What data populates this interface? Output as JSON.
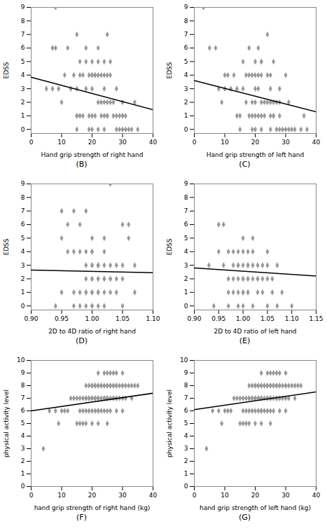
{
  "chart_data": [
    {
      "type": "scatter",
      "title": "(B)",
      "xlabel": "Hand grip strength of right hand",
      "ylabel": "EDSS",
      "xlim": [
        0,
        40
      ],
      "ylim": [
        -0.3,
        9
      ],
      "xticks": [
        0,
        10,
        20,
        30,
        40
      ],
      "yticks": [
        0,
        1,
        2,
        3,
        4,
        5,
        6,
        7,
        8,
        9
      ],
      "series": [
        {
          "type": "scatter",
          "color": "#999999",
          "marker": "diamond",
          "x": [
            5,
            7,
            7,
            8,
            8,
            9,
            10,
            11,
            12,
            13,
            14,
            15,
            15,
            15,
            15,
            15,
            16,
            16,
            16,
            17,
            17,
            18,
            18,
            18,
            19,
            19,
            19,
            20,
            20,
            20,
            20,
            20,
            20,
            21,
            21,
            21,
            22,
            22,
            22,
            22,
            22,
            23,
            23,
            23,
            24,
            24,
            24,
            24,
            24,
            24,
            25,
            25,
            25,
            25,
            25,
            26,
            26,
            26,
            27,
            27,
            28,
            28,
            28,
            29,
            29,
            30,
            30,
            30,
            30,
            31,
            31,
            32,
            33,
            34,
            35
          ],
          "values": [
            3,
            6,
            3,
            9,
            6,
            3,
            2,
            4,
            6,
            3,
            4,
            3,
            1,
            1,
            0,
            7,
            5,
            4,
            1,
            4,
            1,
            6,
            5,
            3,
            4,
            1,
            0,
            4,
            3,
            5,
            4,
            1,
            0,
            4,
            4,
            1,
            6,
            5,
            4,
            2,
            0,
            4,
            2,
            1,
            5,
            4,
            3,
            2,
            1,
            0,
            4,
            2,
            1,
            1,
            7,
            4,
            2,
            5,
            2,
            1,
            3,
            1,
            0,
            0,
            1,
            2,
            1,
            0,
            1,
            1,
            0,
            0,
            0,
            2,
            0
          ]
        },
        {
          "type": "line",
          "color": "#000000",
          "x": [
            0,
            40
          ],
          "values": [
            3.85,
            1.45
          ]
        }
      ]
    },
    {
      "type": "scatter",
      "title": "(C)",
      "xlabel": "Hand grip strength of left hand",
      "ylabel": "EDSS",
      "xlim": [
        0,
        40
      ],
      "ylim": [
        -0.3,
        9
      ],
      "xticks": [
        0,
        10,
        20,
        30,
        40
      ],
      "yticks": [
        0,
        1,
        2,
        3,
        4,
        5,
        6,
        7,
        8,
        9
      ],
      "series": [
        {
          "type": "scatter",
          "color": "#999999",
          "marker": "diamond",
          "x": [
            3,
            5,
            7,
            8,
            9,
            10,
            10,
            11,
            12,
            13,
            14,
            14,
            15,
            15,
            16,
            16,
            17,
            17,
            18,
            18,
            18,
            19,
            19,
            19,
            19,
            20,
            20,
            20,
            20,
            20,
            20,
            21,
            21,
            21,
            21,
            22,
            22,
            22,
            22,
            22,
            22,
            23,
            23,
            24,
            24,
            24,
            25,
            25,
            25,
            25,
            25,
            26,
            26,
            26,
            26,
            27,
            27,
            28,
            28,
            28,
            28,
            29,
            30,
            30,
            31,
            31,
            32,
            33,
            35,
            36,
            37
          ],
          "values": [
            9,
            6,
            6,
            3,
            2,
            4,
            3,
            4,
            3,
            4,
            1,
            3,
            1,
            0,
            5,
            3,
            4,
            2,
            6,
            4,
            1,
            4,
            2,
            1,
            0,
            5,
            4,
            3,
            2,
            1,
            0,
            4,
            3,
            6,
            1,
            5,
            5,
            4,
            2,
            1,
            0,
            2,
            1,
            4,
            2,
            7,
            4,
            3,
            2,
            1,
            0,
            2,
            1,
            5,
            1,
            2,
            0,
            1,
            2,
            0,
            3,
            0,
            4,
            0,
            2,
            0,
            0,
            0,
            0,
            1,
            0
          ]
        },
        {
          "type": "line",
          "color": "#000000",
          "x": [
            0,
            40
          ],
          "values": [
            3.6,
            1.3
          ]
        }
      ]
    },
    {
      "type": "scatter",
      "title": "(D)",
      "xlabel": "2D to 4D ratio of right hand",
      "ylabel": "EDSS",
      "xlim": [
        0.9,
        1.1
      ],
      "ylim": [
        -0.3,
        9
      ],
      "xticks": [
        {
          "value": 0.9,
          "label": "0.90"
        },
        0.95,
        {
          "value": 1.0,
          "label": "1.00"
        },
        1.05,
        {
          "value": 1.1,
          "label": "1.10"
        }
      ],
      "yticks": [
        0,
        1,
        2,
        3,
        4,
        5,
        6,
        7,
        8,
        9
      ],
      "series": [
        {
          "type": "scatter",
          "color": "#999999",
          "marker": "diamond",
          "x": [
            0.94,
            0.95,
            0.95,
            0.95,
            0.96,
            0.96,
            0.97,
            0.97,
            0.97,
            0.97,
            0.98,
            0.98,
            0.98,
            0.98,
            0.99,
            0.99,
            0.99,
            0.99,
            0.99,
            0.99,
            0.99,
            1.0,
            1.0,
            1.0,
            1.0,
            1.0,
            1.0,
            1.0,
            1.0,
            1.0,
            1.0,
            1.0,
            1.0,
            1.01,
            1.01,
            1.01,
            1.01,
            1.01,
            1.01,
            1.01,
            1.01,
            1.02,
            1.02,
            1.02,
            1.02,
            1.02,
            1.02,
            1.02,
            1.03,
            1.03,
            1.03,
            1.03,
            1.03,
            1.04,
            1.04,
            1.04,
            1.05,
            1.05,
            1.05,
            1.05,
            1.06,
            1.06,
            1.07,
            1.07
          ],
          "values": [
            0,
            1,
            5,
            7,
            4,
            6,
            7,
            4,
            1,
            0,
            6,
            4,
            1,
            0,
            4,
            3,
            2,
            1,
            1,
            0,
            7,
            4,
            3,
            3,
            2,
            2,
            1,
            1,
            0,
            0,
            4,
            4,
            5,
            3,
            3,
            3,
            2,
            2,
            1,
            1,
            0,
            5,
            4,
            3,
            2,
            2,
            1,
            0,
            3,
            2,
            2,
            1,
            9,
            3,
            2,
            1,
            6,
            3,
            2,
            0,
            6,
            5,
            3,
            1
          ]
        },
        {
          "type": "line",
          "color": "#000000",
          "x": [
            0.9,
            1.1
          ],
          "values": [
            2.65,
            2.45
          ]
        }
      ]
    },
    {
      "type": "scatter",
      "title": "(E)",
      "xlabel": "2D to 4D ratio of left hand",
      "ylabel": "EDSS",
      "xlim": [
        0.9,
        1.15
      ],
      "ylim": [
        -0.3,
        9
      ],
      "xticks": [
        {
          "value": 0.9,
          "label": "0.90"
        },
        0.95,
        {
          "value": 1.0,
          "label": "1.00"
        },
        1.05,
        {
          "value": 1.1,
          "label": "1.10"
        },
        1.15
      ],
      "yticks": [
        0,
        1,
        2,
        3,
        4,
        5,
        6,
        7,
        8,
        9
      ],
      "series": [
        {
          "type": "scatter",
          "color": "#999999",
          "marker": "diamond",
          "x": [
            0.93,
            0.94,
            0.95,
            0.95,
            0.96,
            0.96,
            0.97,
            0.97,
            0.97,
            0.97,
            0.98,
            0.98,
            0.98,
            0.98,
            0.99,
            0.99,
            0.99,
            0.99,
            0.99,
            0.99,
            1.0,
            1.0,
            1.0,
            1.0,
            1.0,
            1.0,
            1.0,
            1.0,
            1.01,
            1.01,
            1.01,
            1.01,
            1.01,
            1.01,
            1.01,
            1.02,
            1.02,
            1.02,
            1.02,
            1.02,
            1.03,
            1.03,
            1.03,
            1.03,
            1.04,
            1.04,
            1.04,
            1.05,
            1.05,
            1.05,
            1.05,
            1.06,
            1.06,
            1.07,
            1.07,
            1.08,
            1.1
          ],
          "values": [
            3,
            0,
            4,
            6,
            3,
            6,
            4,
            2,
            1,
            0,
            4,
            3,
            2,
            1,
            4,
            3,
            3,
            2,
            1,
            0,
            5,
            4,
            3,
            2,
            2,
            1,
            1,
            0,
            4,
            3,
            3,
            2,
            2,
            1,
            1,
            5,
            4,
            3,
            2,
            0,
            3,
            2,
            2,
            1,
            3,
            2,
            1,
            4,
            3,
            2,
            0,
            2,
            1,
            3,
            0,
            1,
            0
          ]
        },
        {
          "type": "line",
          "color": "#000000",
          "x": [
            0.9,
            1.15
          ],
          "values": [
            2.8,
            2.2
          ]
        }
      ]
    },
    {
      "type": "scatter",
      "title": "(F)",
      "xlabel": "hand grip strength of right hand (kg)",
      "ylabel": "physical activity level",
      "xlim": [
        0,
        40
      ],
      "ylim": [
        0,
        10
      ],
      "xticks": [
        0,
        10,
        20,
        30,
        40
      ],
      "yticks": [
        0,
        1,
        2,
        3,
        4,
        5,
        6,
        7,
        8,
        9,
        10
      ],
      "series": [
        {
          "type": "scatter",
          "color": "#999999",
          "marker": "diamond",
          "x": [
            4,
            6,
            8,
            9,
            10,
            11,
            12,
            13,
            14,
            15,
            15,
            16,
            16,
            16,
            17,
            17,
            17,
            18,
            18,
            18,
            18,
            18,
            19,
            19,
            19,
            19,
            20,
            20,
            20,
            20,
            20,
            20,
            21,
            21,
            21,
            21,
            21,
            22,
            22,
            22,
            22,
            22,
            22,
            22,
            22,
            22,
            23,
            23,
            23,
            23,
            24,
            24,
            24,
            24,
            24,
            24,
            25,
            25,
            25,
            25,
            25,
            25,
            25,
            25,
            26,
            26,
            26,
            26,
            26,
            27,
            27,
            27,
            27,
            27,
            28,
            28,
            28,
            28,
            28,
            28,
            29,
            29,
            30,
            30,
            30,
            30,
            30,
            31,
            31,
            32,
            33,
            33,
            34,
            35
          ],
          "values": [
            3,
            6,
            6,
            5,
            6,
            6,
            6,
            7,
            7,
            7,
            5,
            7,
            6,
            5,
            7,
            6,
            5,
            8,
            7,
            7,
            6,
            5,
            8,
            7,
            7,
            6,
            8,
            8,
            7,
            7,
            6,
            5,
            8,
            8,
            7,
            7,
            6,
            9,
            8,
            8,
            7,
            7,
            7,
            6,
            6,
            5,
            8,
            8,
            7,
            6,
            9,
            8,
            8,
            7,
            7,
            6,
            9,
            8,
            8,
            7,
            7,
            7,
            6,
            5,
            9,
            8,
            8,
            7,
            6,
            9,
            8,
            8,
            7,
            7,
            9,
            8,
            8,
            7,
            7,
            6,
            8,
            7,
            9,
            8,
            8,
            7,
            6,
            8,
            7,
            8,
            8,
            7,
            8,
            8
          ]
        },
        {
          "type": "line",
          "color": "#000000",
          "x": [
            0,
            40
          ],
          "values": [
            6.0,
            7.4
          ]
        }
      ]
    },
    {
      "type": "scatter",
      "title": "(G)",
      "xlabel": "hand grip strength of left hand (kg)",
      "ylabel": "physical activity level",
      "xlim": [
        0,
        40
      ],
      "ylim": [
        0,
        10
      ],
      "xticks": [
        0,
        10,
        20,
        30,
        40
      ],
      "yticks": [
        0,
        1,
        2,
        3,
        4,
        5,
        6,
        7,
        8,
        9,
        10
      ],
      "series": [
        {
          "type": "scatter",
          "color": "#999999",
          "marker": "diamond",
          "x": [
            4,
            6,
            8,
            9,
            10,
            11,
            12,
            13,
            14,
            15,
            15,
            16,
            16,
            16,
            17,
            17,
            17,
            18,
            18,
            18,
            18,
            18,
            19,
            19,
            19,
            19,
            20,
            20,
            20,
            20,
            20,
            20,
            21,
            21,
            21,
            21,
            21,
            22,
            22,
            22,
            22,
            22,
            22,
            22,
            22,
            22,
            23,
            23,
            23,
            23,
            24,
            24,
            24,
            24,
            24,
            24,
            25,
            25,
            25,
            25,
            25,
            25,
            25,
            25,
            26,
            26,
            26,
            26,
            26,
            27,
            27,
            27,
            27,
            27,
            28,
            28,
            28,
            28,
            28,
            28,
            29,
            29,
            30,
            30,
            30,
            30,
            30,
            31,
            31,
            32,
            33,
            33,
            34,
            35
          ],
          "values": [
            3,
            6,
            6,
            5,
            6,
            6,
            6,
            7,
            7,
            7,
            5,
            7,
            6,
            5,
            7,
            6,
            5,
            8,
            7,
            7,
            6,
            5,
            8,
            7,
            7,
            6,
            8,
            8,
            7,
            7,
            6,
            5,
            8,
            8,
            7,
            7,
            6,
            9,
            8,
            8,
            7,
            7,
            7,
            6,
            6,
            5,
            8,
            8,
            7,
            6,
            9,
            8,
            8,
            7,
            7,
            6,
            9,
            8,
            8,
            7,
            7,
            7,
            6,
            5,
            9,
            8,
            8,
            7,
            6,
            9,
            8,
            8,
            7,
            7,
            9,
            8,
            8,
            7,
            7,
            6,
            8,
            7,
            9,
            8,
            8,
            7,
            6,
            8,
            7,
            8,
            8,
            7,
            8,
            8
          ]
        },
        {
          "type": "line",
          "color": "#000000",
          "x": [
            0,
            40
          ],
          "values": [
            6.1,
            7.5
          ]
        }
      ]
    }
  ]
}
